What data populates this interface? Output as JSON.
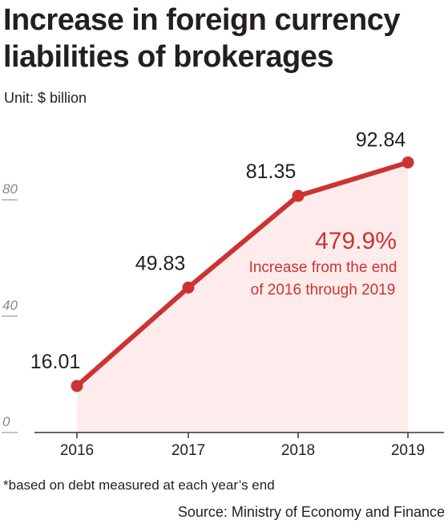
{
  "title": "Increase in foreign currency liabilities of brokerages",
  "unit": "Unit: $ billion",
  "footnote": "*based on debt measured at each year’s end",
  "source": "Source: Ministry of Economy and Finance",
  "colors": {
    "line": "#cc3333",
    "fill": "#fdeceb",
    "annotation": "#cc3333",
    "axis": "#333333",
    "tick_label": "#888888"
  },
  "chart_data": {
    "type": "area",
    "categories": [
      "2016",
      "2017",
      "2018",
      "2019"
    ],
    "values": [
      16.01,
      49.83,
      81.35,
      92.84
    ],
    "value_labels": [
      "16.01",
      "49.83",
      "81.35",
      "92.84"
    ],
    "yticks": [
      0,
      40,
      80
    ],
    "ytick_labels": [
      "0",
      "40",
      "80"
    ],
    "ylim": [
      0,
      100
    ],
    "grid": false,
    "annotation": {
      "headline": "479.9%",
      "line1": "Increase from the end",
      "line2": "of 2016 through 2019"
    }
  }
}
